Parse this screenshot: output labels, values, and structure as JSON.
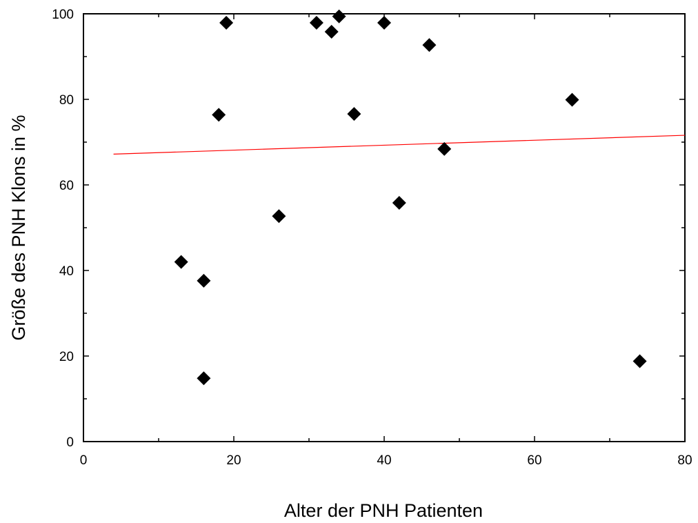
{
  "chart_data": {
    "type": "scatter",
    "title": "",
    "xlabel": "Alter der PNH Patienten",
    "ylabel": "Größe des PNH Klons in %",
    "xlim": [
      0,
      80
    ],
    "ylim": [
      0,
      100
    ],
    "x_ticks": [
      0,
      20,
      40,
      60,
      80
    ],
    "y_ticks": [
      0,
      20,
      40,
      60,
      80,
      100
    ],
    "x_tick_labels": [
      "0",
      "20",
      "40",
      "60",
      "80"
    ],
    "y_tick_labels": [
      "0",
      "20",
      "40",
      "60",
      "80",
      "100"
    ],
    "grid": false,
    "legend": "none",
    "marker": "diamond",
    "marker_color": "#000000",
    "points": [
      {
        "x": 13,
        "y": 42
      },
      {
        "x": 16,
        "y": 37.6
      },
      {
        "x": 16,
        "y": 14.8
      },
      {
        "x": 18,
        "y": 76.4
      },
      {
        "x": 19,
        "y": 97.9
      },
      {
        "x": 26,
        "y": 52.7
      },
      {
        "x": 31,
        "y": 97.9
      },
      {
        "x": 33,
        "y": 95.8
      },
      {
        "x": 34,
        "y": 99.4
      },
      {
        "x": 36,
        "y": 76.6
      },
      {
        "x": 40,
        "y": 97.9
      },
      {
        "x": 42,
        "y": 55.8
      },
      {
        "x": 46,
        "y": 92.7
      },
      {
        "x": 48,
        "y": 68.4
      },
      {
        "x": 65,
        "y": 79.9
      },
      {
        "x": 74,
        "y": 18.8
      }
    ],
    "fit_line": {
      "color": "#ff0000",
      "x": [
        4,
        80
      ],
      "y": [
        67.2,
        71.6
      ]
    }
  }
}
